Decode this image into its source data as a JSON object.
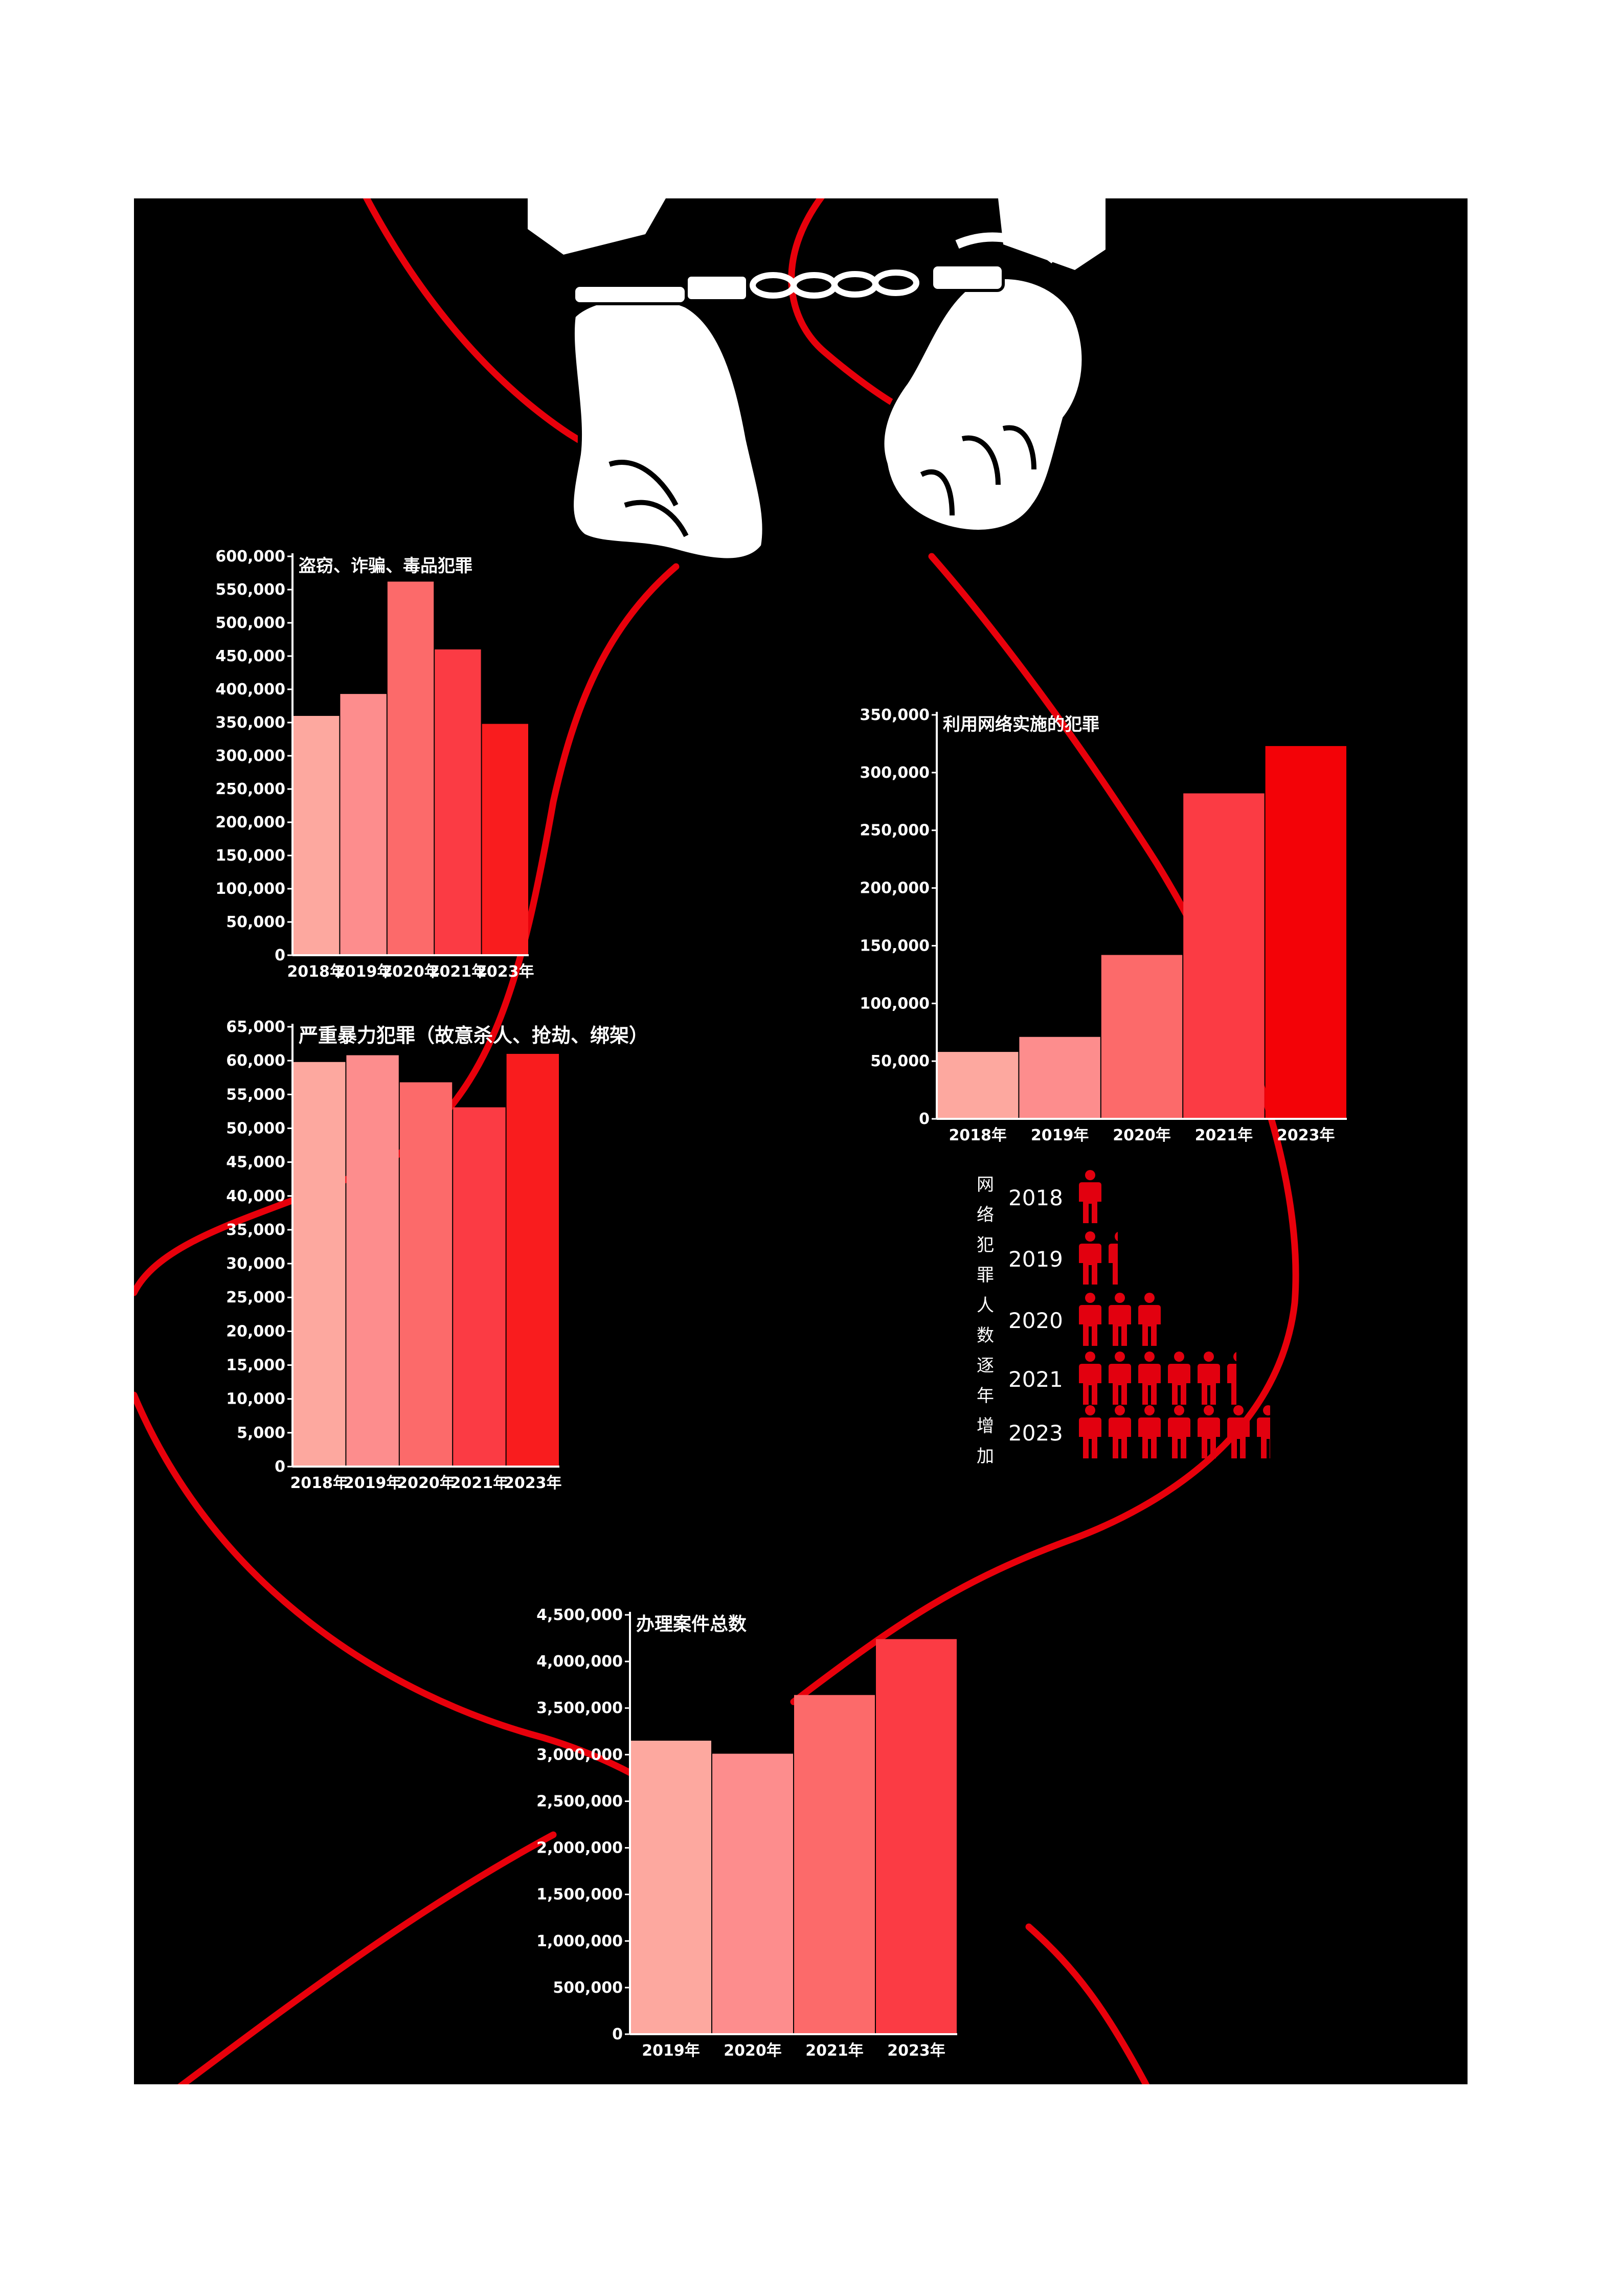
{
  "colors": {
    "background": "#000000",
    "page": "#ffffff",
    "thread": "#e8000b",
    "bars": [
      "#fda89f",
      "#fd8d8d",
      "#fc6a6a",
      "#fb3b44",
      "#f91c1e"
    ],
    "cyber_bars": [
      "#fda89f",
      "#fd8d8d",
      "#fc6a6a",
      "#fb3b44",
      "#f30207"
    ],
    "total_bars": [
      "#fda89f",
      "#fd8d8d",
      "#fc6a6a",
      "#fb3b44"
    ],
    "person_icon": "#e2000f"
  },
  "illustration": {
    "subject": "handcuffed-hands-icon"
  },
  "chart_data": [
    {
      "id": "theft",
      "type": "bar",
      "title": "盗窃、诈骗、毒品犯罪",
      "categories": [
        "2018年",
        "2019年",
        "2020年",
        "2021年",
        "2023年"
      ],
      "values": [
        360000,
        393000,
        562000,
        460000,
        348000
      ],
      "ylim": [
        0,
        600000
      ],
      "yticks": [
        "0",
        "50,000",
        "100,000",
        "150,000",
        "200,000",
        "250,000",
        "300,000",
        "350,000",
        "400,000",
        "450,000",
        "500,000",
        "550,000",
        "600,000"
      ],
      "xlabel": "",
      "ylabel": "",
      "grid": false
    },
    {
      "id": "violent",
      "type": "bar",
      "title": "严重暴力犯罪（故意杀人、抢劫、绑架）",
      "categories": [
        "2018年",
        "2019年",
        "2020年",
        "2021年",
        "2023年"
      ],
      "values": [
        59800,
        60800,
        56800,
        53100,
        61000
      ],
      "ylim": [
        0,
        65000
      ],
      "yticks": [
        "0",
        "5,000",
        "10,000",
        "15,000",
        "20,000",
        "25,000",
        "30,000",
        "35,000",
        "40,000",
        "45,000",
        "50,000",
        "55,000",
        "60,000",
        "65,000"
      ],
      "xlabel": "",
      "ylabel": "",
      "grid": false
    },
    {
      "id": "cyber",
      "type": "bar",
      "title": "利用网络实施的犯罪",
      "categories": [
        "2018年",
        "2019年",
        "2020年",
        "2021年",
        "2023年"
      ],
      "values": [
        58000,
        71000,
        142000,
        282000,
        323000
      ],
      "ylim": [
        0,
        350000
      ],
      "yticks": [
        "0",
        "50,000",
        "100,000",
        "150,000",
        "200,000",
        "250,000",
        "300,000",
        "350,000"
      ],
      "xlabel": "",
      "ylabel": "",
      "grid": false
    },
    {
      "id": "total",
      "type": "bar",
      "title": "办理案件总数",
      "categories": [
        "2019年",
        "2020年",
        "2021年",
        "2023年"
      ],
      "values": [
        3150000,
        3010000,
        3640000,
        4240000
      ],
      "ylim": [
        0,
        4500000
      ],
      "yticks": [
        "0",
        "500,000",
        "1,000,000",
        "1,500,000",
        "2,000,000",
        "2,500,000",
        "3,000,000",
        "3,500,000",
        "4,000,000",
        "4,500,000"
      ],
      "xlabel": "",
      "ylabel": "",
      "grid": false
    },
    {
      "id": "cyber_people",
      "type": "pictograph",
      "label": "网络犯罪人数逐年增加",
      "categories": [
        "2018",
        "2019",
        "2020",
        "2021",
        "2023"
      ],
      "icon": "person-icon",
      "values": [
        1,
        1.4,
        3,
        5.4,
        6.6
      ]
    }
  ]
}
